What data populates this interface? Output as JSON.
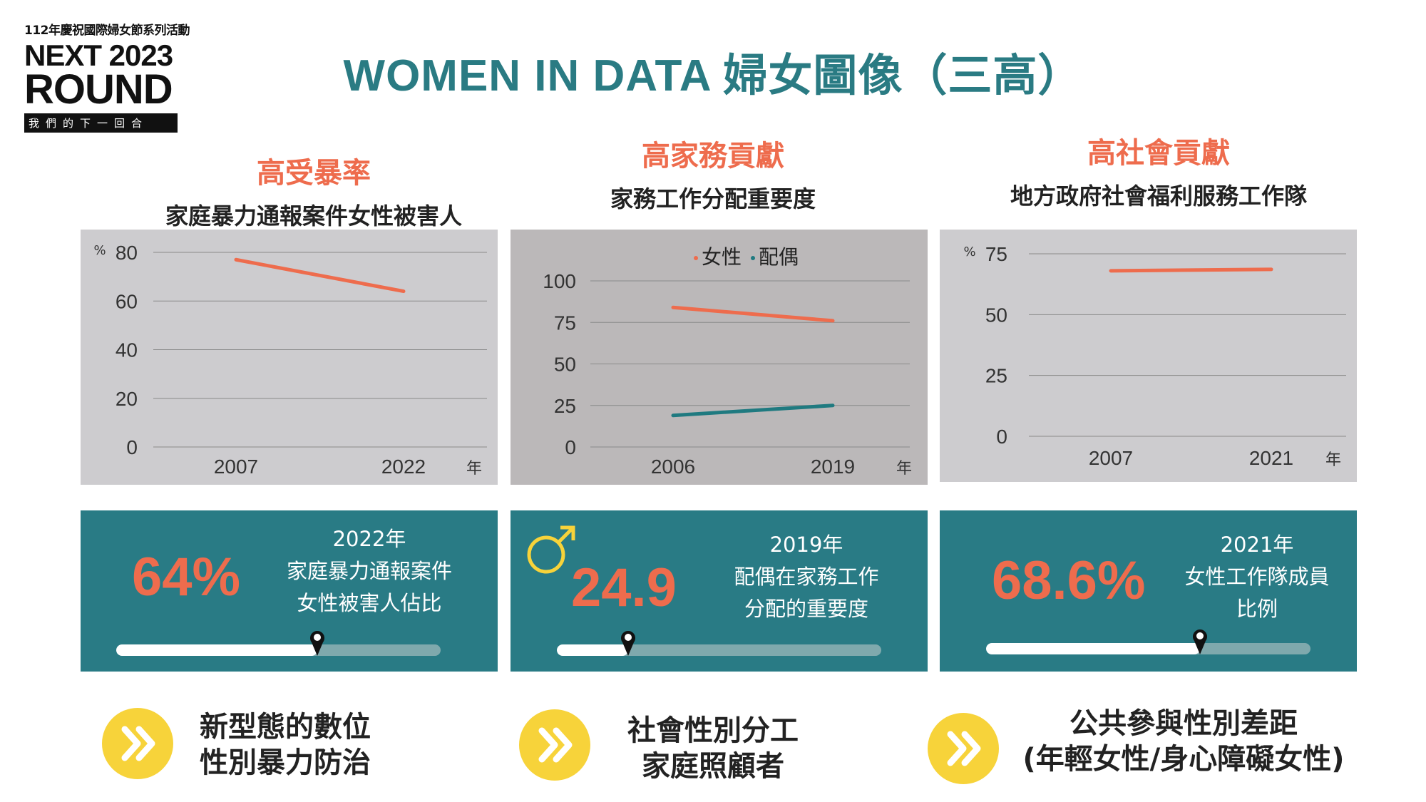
{
  "logo": {
    "line1": "112年慶祝國際婦女節系列活動",
    "line2": "NEXT 2023",
    "line3": "ROUND",
    "line4": "我們的下一回合"
  },
  "title": "WOMEN IN DATA 婦女圖像（三高）",
  "colors": {
    "accent": "#ee6c4d",
    "teal": "#297b85",
    "series_spouse": "#1f7a80",
    "bullet": "#f7d33a"
  },
  "columns": [
    {
      "heading": "高受暴率",
      "subheading": "家庭暴力通報案件女性被害人",
      "stat": {
        "value": "64%",
        "year": "2022年",
        "desc1": "家庭暴力通報案件",
        "desc2": "女性被害人佔比",
        "progress": 0.62
      },
      "bullet": {
        "icon": "double-chevron-right-icon",
        "line1": "新型態的數位",
        "line2": "性別暴力防治"
      }
    },
    {
      "heading": "高家務貢獻",
      "subheading": "家務工作分配重要度",
      "stat": {
        "value": "24.9",
        "year": "2019年",
        "desc1": "配偶在家務工作",
        "desc2": "分配的重要度",
        "progress": 0.22,
        "icon": "male-symbol-icon"
      },
      "bullet": {
        "icon": "double-chevron-right-icon",
        "line1": "社會性別分工",
        "line2": "家庭照顧者"
      }
    },
    {
      "heading": "高社會貢獻",
      "subheading": "地方政府社會福利服務工作隊",
      "stat": {
        "value": "68.6%",
        "year": "2021年",
        "desc1": "女性工作隊成員",
        "desc2": "比例",
        "progress": 0.66
      },
      "bullet": {
        "icon": "double-chevron-right-icon",
        "line1": "公共參與性別差距",
        "line2": "(年輕女性/身心障礙女性)"
      }
    }
  ],
  "chart_data": [
    {
      "type": "line",
      "x": [
        "2007",
        "2022"
      ],
      "series": [
        {
          "values": [
            77,
            64
          ],
          "color": "#ee6c4d"
        }
      ],
      "ylabel": "%",
      "xlabel": "年",
      "yticks": [
        0,
        20,
        40,
        60,
        80
      ],
      "ylim": [
        0,
        80
      ],
      "grid": true
    },
    {
      "type": "line",
      "x": [
        "2006",
        "2019"
      ],
      "series": [
        {
          "name": "女性",
          "values": [
            84,
            76
          ],
          "color": "#ee6c4d"
        },
        {
          "name": "配偶",
          "values": [
            19,
            25
          ],
          "color": "#1f7a80"
        }
      ],
      "xlabel": "年",
      "yticks": [
        0,
        25,
        50,
        75,
        100
      ],
      "ylim": [
        0,
        100
      ],
      "legend": "top",
      "grid": true
    },
    {
      "type": "line",
      "x": [
        "2007",
        "2021"
      ],
      "series": [
        {
          "values": [
            68,
            68.6
          ],
          "color": "#ee6c4d"
        }
      ],
      "ylabel": "%",
      "xlabel": "年",
      "yticks": [
        0,
        25,
        50,
        75
      ],
      "ylim": [
        0,
        75
      ],
      "grid": true
    }
  ]
}
